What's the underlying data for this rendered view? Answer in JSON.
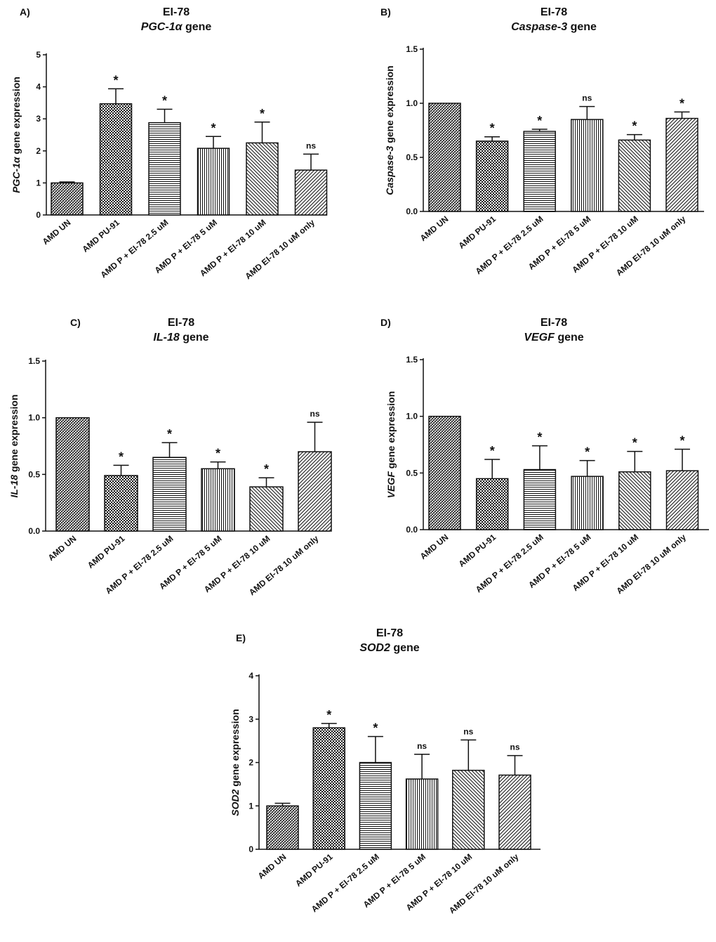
{
  "figure_colors": {
    "ink": "#111111",
    "bar_fill": "#ffffff"
  },
  "chart_data": [
    {
      "type": "bar",
      "panel": "A)",
      "title_line1": "EI-78",
      "gene_name": "PGC-1α",
      "gene_suffix": " gene",
      "ylabel_gene": "PGC-1α",
      "ylabel_rest": " gene expression",
      "categories": [
        "AMD UN",
        "AMD PU-91",
        "AMD P + EI-78 2.5 uM",
        "AMD P + EI-78 5 uM",
        "AMD P + EI-78 10 uM",
        "AMD EI-78 10 uM only"
      ],
      "values": [
        1.0,
        3.47,
        2.88,
        2.08,
        2.25,
        1.4
      ],
      "errors": [
        0.03,
        0.47,
        0.42,
        0.37,
        0.65,
        0.5
      ],
      "significance": [
        "",
        "*",
        "*",
        "*",
        "*",
        "ns"
      ],
      "yticks": [
        "0",
        "1",
        "2",
        "3",
        "4",
        "5"
      ],
      "ylim": [
        0,
        5
      ]
    },
    {
      "type": "bar",
      "panel": "B)",
      "title_line1": "EI-78",
      "gene_name": "Caspase-3",
      "gene_suffix": " gene",
      "ylabel_gene": "Caspase-3",
      "ylabel_rest": " gene expression",
      "categories": [
        "AMD UN",
        "AMD PU-91",
        "AMD P + EI-78 2.5 uM",
        "AMD P + EI-78 5 uM",
        "AMD P + EI-78 10 uM",
        "AMD EI-78 10 uM only"
      ],
      "values": [
        1.0,
        0.65,
        0.74,
        0.85,
        0.66,
        0.86
      ],
      "errors": [
        0.0,
        0.04,
        0.02,
        0.12,
        0.05,
        0.06
      ],
      "significance": [
        "",
        "*",
        "*",
        "ns",
        "*",
        "*"
      ],
      "yticks": [
        "0.0",
        "0.5",
        "1.0",
        "1.5"
      ],
      "ylim": [
        0,
        1.5
      ]
    },
    {
      "type": "bar",
      "panel": "C)",
      "title_line1": "EI-78",
      "gene_name": "IL-18",
      "gene_suffix": " gene",
      "ylabel_gene": "IL-18",
      "ylabel_rest": " gene expression",
      "categories": [
        "AMD UN",
        "AMD PU-91",
        "AMD P + EI-78 2.5 uM",
        "AMD P + EI-78 5 uM",
        "AMD P + EI-78 10 uM",
        "AMD EI-78 10 uM only"
      ],
      "values": [
        1.0,
        0.49,
        0.65,
        0.55,
        0.39,
        0.7
      ],
      "errors": [
        0.0,
        0.09,
        0.13,
        0.06,
        0.08,
        0.26
      ],
      "significance": [
        "",
        "*",
        "*",
        "*",
        "*",
        "ns"
      ],
      "yticks": [
        "0.0",
        "0.5",
        "1.0",
        "1.5"
      ],
      "ylim": [
        0,
        1.5
      ]
    },
    {
      "type": "bar",
      "panel": "D)",
      "title_line1": "EI-78",
      "gene_name": "VEGF",
      "gene_suffix": " gene",
      "ylabel_gene": "VEGF",
      "ylabel_rest": " gene expression",
      "categories": [
        "AMD UN",
        "AMD PU-91",
        "AMD P + EI-78 2.5 uM",
        "AMD P + EI-78 5 uM",
        "AMD P + EI-78 10 uM",
        "AMD EI-78 10 uM only"
      ],
      "values": [
        1.0,
        0.45,
        0.53,
        0.47,
        0.51,
        0.52
      ],
      "errors": [
        0.0,
        0.17,
        0.21,
        0.14,
        0.18,
        0.19
      ],
      "significance": [
        "",
        "*",
        "*",
        "*",
        "*",
        "*"
      ],
      "yticks": [
        "0.0",
        "0.5",
        "1.0",
        "1.5"
      ],
      "ylim": [
        0,
        1.5
      ]
    },
    {
      "type": "bar",
      "panel": "E)",
      "title_line1": "EI-78",
      "gene_name": "SOD2",
      "gene_suffix": " gene",
      "ylabel_gene": "SOD2",
      "ylabel_rest": "  gene expression",
      "categories": [
        "AMD UN",
        "AMD PU-91",
        "AMD P + EI-78 2.5 uM",
        "AMD P + EI-78 5 uM",
        "AMD P + EI-78 10 uM",
        "AMD EI-78 10 uM only"
      ],
      "values": [
        1.0,
        2.8,
        2.0,
        1.62,
        1.82,
        1.71
      ],
      "errors": [
        0.06,
        0.1,
        0.6,
        0.57,
        0.7,
        0.45
      ],
      "significance": [
        "",
        "*",
        "*",
        "ns",
        "ns",
        "ns"
      ],
      "yticks": [
        "0",
        "1",
        "2",
        "3",
        "4"
      ],
      "ylim": [
        0,
        4
      ]
    }
  ]
}
